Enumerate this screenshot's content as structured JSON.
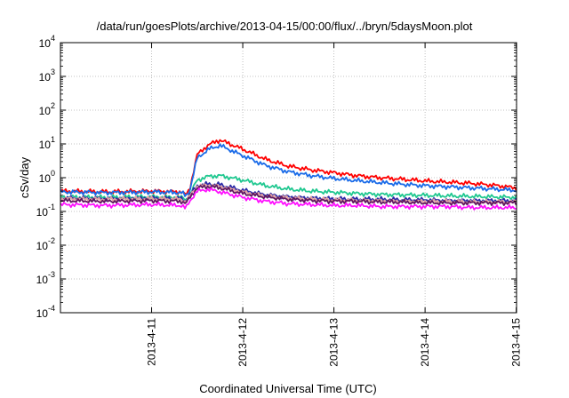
{
  "chart_data": {
    "type": "line",
    "title": "/data/run/goesPlots/archive/2013-04-15/00:00/flux/../bryn/5daysMoon.plot",
    "xlabel": "Coordinated Universal Time (UTC)",
    "ylabel": "cSv/day",
    "yscale": "log",
    "ylim": [
      0.0001,
      10000
    ],
    "xlim": [
      "2013-04-10 00:00",
      "2013-04-15 00:05"
    ],
    "x_ticks": [
      "2013-4-11",
      "2013-4-12",
      "2013-4-13",
      "2013-4-14",
      "2013-4-15"
    ],
    "y_ticks": [
      {
        "base": "10",
        "exp": "-4",
        "value": 0.0001
      },
      {
        "base": "10",
        "exp": "-3",
        "value": 0.001
      },
      {
        "base": "10",
        "exp": "-2",
        "value": 0.01
      },
      {
        "base": "10",
        "exp": "-1",
        "value": 0.1
      },
      {
        "base": "10",
        "exp": "0",
        "value": 1
      },
      {
        "base": "10",
        "exp": "1",
        "value": 10
      },
      {
        "base": "10",
        "exp": "2",
        "value": 100
      },
      {
        "base": "10",
        "exp": "3",
        "value": 1000
      },
      {
        "base": "10",
        "exp": "4",
        "value": 10000
      }
    ],
    "grid": true,
    "legend": "none",
    "x": [
      "2013-04-10 00:00",
      "2013-04-10 12:00",
      "2013-04-11 00:00",
      "2013-04-11 08:00",
      "2013-04-11 09:00",
      "2013-04-11 10:00",
      "2013-04-11 12:00",
      "2013-04-11 15:00",
      "2013-04-11 18:00",
      "2013-04-12 00:00",
      "2013-04-12 06:00",
      "2013-04-12 12:00",
      "2013-04-12 18:00",
      "2013-04-13 00:00",
      "2013-04-13 06:00",
      "2013-04-13 12:00",
      "2013-04-13 18:00",
      "2013-04-14 00:00",
      "2013-04-14 06:00",
      "2013-04-14 12:00",
      "2013-04-14 18:00",
      "2013-04-15 00:00"
    ],
    "series": [
      {
        "color": "#ff0000",
        "values": [
          0.4,
          0.38,
          0.4,
          0.38,
          0.3,
          0.45,
          4.8,
          9.5,
          13.0,
          7.0,
          3.5,
          2.2,
          1.7,
          1.4,
          1.15,
          1.0,
          0.9,
          0.8,
          0.74,
          0.68,
          0.6,
          0.5
        ]
      },
      {
        "color": "#1a6be8",
        "values": [
          0.38,
          0.36,
          0.38,
          0.36,
          0.28,
          0.4,
          3.8,
          7.0,
          9.0,
          4.5,
          2.3,
          1.5,
          1.15,
          0.95,
          0.82,
          0.72,
          0.64,
          0.58,
          0.54,
          0.5,
          0.46,
          0.42
        ]
      },
      {
        "color": "#20c890",
        "values": [
          0.27,
          0.26,
          0.27,
          0.26,
          0.22,
          0.3,
          0.85,
          1.1,
          1.15,
          0.85,
          0.58,
          0.46,
          0.4,
          0.37,
          0.34,
          0.32,
          0.31,
          0.3,
          0.29,
          0.28,
          0.27,
          0.26
        ]
      },
      {
        "color": "#2a2aa8",
        "values": [
          0.25,
          0.24,
          0.25,
          0.24,
          0.2,
          0.3,
          0.58,
          0.65,
          0.62,
          0.42,
          0.31,
          0.27,
          0.25,
          0.24,
          0.23,
          0.23,
          0.22,
          0.22,
          0.21,
          0.21,
          0.21,
          0.21
        ]
      },
      {
        "color": "#e0a0a0",
        "values": [
          0.24,
          0.23,
          0.24,
          0.23,
          0.19,
          0.28,
          0.55,
          0.6,
          0.55,
          0.38,
          0.29,
          0.25,
          0.23,
          0.22,
          0.21,
          0.21,
          0.2,
          0.2,
          0.2,
          0.19,
          0.19,
          0.19
        ]
      },
      {
        "color": "#601860",
        "values": [
          0.21,
          0.2,
          0.21,
          0.2,
          0.17,
          0.25,
          0.5,
          0.55,
          0.5,
          0.34,
          0.27,
          0.23,
          0.21,
          0.2,
          0.2,
          0.19,
          0.19,
          0.18,
          0.18,
          0.18,
          0.18,
          0.18
        ]
      },
      {
        "color": "#ff10ff",
        "values": [
          0.16,
          0.15,
          0.16,
          0.15,
          0.12,
          0.2,
          0.4,
          0.45,
          0.38,
          0.26,
          0.2,
          0.17,
          0.16,
          0.15,
          0.15,
          0.14,
          0.14,
          0.14,
          0.14,
          0.13,
          0.13,
          0.13
        ]
      }
    ]
  }
}
